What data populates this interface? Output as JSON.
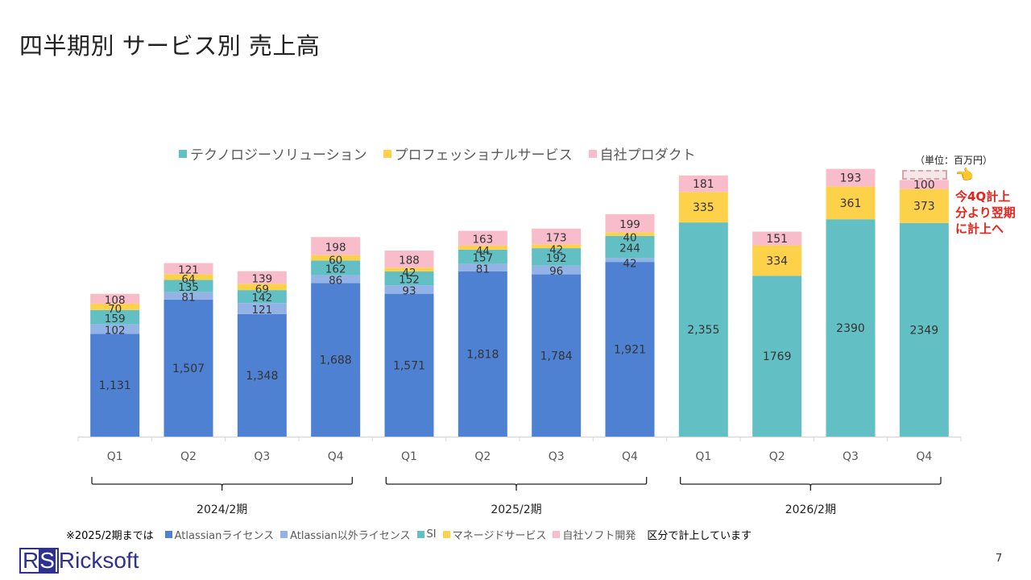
{
  "page": {
    "title": "四半期別 サービス別 売上高",
    "unit_label": "（単位：百万円）",
    "annotation_lines": [
      "今4Q計上",
      "分より翌期",
      "に計上へ"
    ],
    "footnote_prefix": "※2025/2期までは",
    "footnote_suffix": "区分で計上しています",
    "logo_rs": [
      "R",
      "S"
    ],
    "logo_text": "Ricksoft",
    "page_number": "7",
    "hand_icon": "pointing-hand"
  },
  "colors": {
    "atlassian_license": "#4f81d3",
    "other_license": "#93b3e6",
    "si_tech": "#62bfc4",
    "managed_pro": "#fdd24a",
    "own_product": "#f8bccb",
    "annotation_red": "#e8211b",
    "logo_blue": "#2e3192"
  },
  "legend_top": [
    {
      "label": "テクノロジーソリューション",
      "color": "#62bfc4"
    },
    {
      "label": "プロフェッショナルサービス",
      "color": "#fdd24a"
    },
    {
      "label": "自社プロダクト",
      "color": "#f8bccb"
    }
  ],
  "legend_bottom": [
    {
      "label": "Atlassianライセンス",
      "color": "#4f81d3"
    },
    {
      "label": "Atlassian以外ライセンス",
      "color": "#93b3e6"
    },
    {
      "label": "SI",
      "color": "#62bfc4"
    },
    {
      "label": "マネージドサービス",
      "color": "#fdd24a"
    },
    {
      "label": "自社ソフト開発",
      "color": "#f8bccb"
    }
  ],
  "chart_data": {
    "type": "bar",
    "stacked": true,
    "title": "四半期別 サービス別 売上高",
    "xlabel": "",
    "ylabel": "",
    "unit": "百万円",
    "ylim": [
      0,
      3000
    ],
    "grid": false,
    "legend_position": "top",
    "categories": [
      "Q1",
      "Q2",
      "Q3",
      "Q4",
      "Q1",
      "Q2",
      "Q3",
      "Q4",
      "Q1",
      "Q2",
      "Q3",
      "Q4"
    ],
    "groups": [
      {
        "label": "2024/2期",
        "from": 0,
        "to": 3
      },
      {
        "label": "2025/2期",
        "from": 4,
        "to": 7
      },
      {
        "label": "2026/2期",
        "from": 8,
        "to": 11
      }
    ],
    "bars": [
      {
        "segments": [
          {
            "key": "atlassian_license",
            "value": 1131,
            "label": "1,131"
          },
          {
            "key": "other_license",
            "value": 102,
            "label": "102"
          },
          {
            "key": "si_tech",
            "value": 159,
            "label": "159"
          },
          {
            "key": "managed_pro",
            "value": 70,
            "label": "70"
          },
          {
            "key": "own_product",
            "value": 108,
            "label": "108"
          }
        ]
      },
      {
        "segments": [
          {
            "key": "atlassian_license",
            "value": 1507,
            "label": "1,507"
          },
          {
            "key": "other_license",
            "value": 81,
            "label": "81"
          },
          {
            "key": "si_tech",
            "value": 135,
            "label": "135"
          },
          {
            "key": "managed_pro",
            "value": 64,
            "label": "64"
          },
          {
            "key": "own_product",
            "value": 121,
            "label": "121"
          }
        ]
      },
      {
        "segments": [
          {
            "key": "atlassian_license",
            "value": 1348,
            "label": "1,348"
          },
          {
            "key": "other_license",
            "value": 121,
            "label": "121"
          },
          {
            "key": "si_tech",
            "value": 142,
            "label": "142"
          },
          {
            "key": "managed_pro",
            "value": 69,
            "label": "69"
          },
          {
            "key": "own_product",
            "value": 139,
            "label": "139"
          }
        ]
      },
      {
        "segments": [
          {
            "key": "atlassian_license",
            "value": 1688,
            "label": "1,688"
          },
          {
            "key": "other_license",
            "value": 86,
            "label": "86"
          },
          {
            "key": "si_tech",
            "value": 162,
            "label": "162"
          },
          {
            "key": "managed_pro",
            "value": 60,
            "label": "60"
          },
          {
            "key": "own_product",
            "value": 198,
            "label": "198"
          }
        ]
      },
      {
        "segments": [
          {
            "key": "atlassian_license",
            "value": 1571,
            "label": "1,571"
          },
          {
            "key": "other_license",
            "value": 93,
            "label": "93"
          },
          {
            "key": "si_tech",
            "value": 152,
            "label": "152"
          },
          {
            "key": "managed_pro",
            "value": 42,
            "label": "42"
          },
          {
            "key": "own_product",
            "value": 188,
            "label": "188"
          }
        ]
      },
      {
        "segments": [
          {
            "key": "atlassian_license",
            "value": 1818,
            "label": "1,818"
          },
          {
            "key": "other_license",
            "value": 81,
            "label": "81"
          },
          {
            "key": "si_tech",
            "value": 157,
            "label": "157"
          },
          {
            "key": "managed_pro",
            "value": 44,
            "label": "44"
          },
          {
            "key": "own_product",
            "value": 163,
            "label": "163"
          }
        ]
      },
      {
        "segments": [
          {
            "key": "atlassian_license",
            "value": 1784,
            "label": "1,784"
          },
          {
            "key": "other_license",
            "value": 96,
            "label": "96"
          },
          {
            "key": "si_tech",
            "value": 192,
            "label": "192"
          },
          {
            "key": "managed_pro",
            "value": 42,
            "label": "42"
          },
          {
            "key": "own_product",
            "value": 173,
            "label": "173"
          }
        ]
      },
      {
        "segments": [
          {
            "key": "atlassian_license",
            "value": 1921,
            "label": "1,921"
          },
          {
            "key": "other_license",
            "value": 42,
            "label": "42"
          },
          {
            "key": "si_tech",
            "value": 244,
            "label": "244"
          },
          {
            "key": "managed_pro",
            "value": 40,
            "label": "40"
          },
          {
            "key": "own_product",
            "value": 199,
            "label": "199"
          }
        ]
      },
      {
        "segments": [
          {
            "key": "si_tech",
            "value": 2355,
            "label": "2,355"
          },
          {
            "key": "managed_pro",
            "value": 335,
            "label": "335"
          },
          {
            "key": "own_product",
            "value": 181,
            "label": "181"
          }
        ]
      },
      {
        "segments": [
          {
            "key": "si_tech",
            "value": 1769,
            "label": "1769"
          },
          {
            "key": "managed_pro",
            "value": 334,
            "label": "334"
          },
          {
            "key": "own_product",
            "value": 151,
            "label": "151"
          }
        ]
      },
      {
        "segments": [
          {
            "key": "si_tech",
            "value": 2390,
            "label": "2390"
          },
          {
            "key": "managed_pro",
            "value": 361,
            "label": "361"
          },
          {
            "key": "own_product",
            "value": 193,
            "label": "193"
          }
        ]
      },
      {
        "segments": [
          {
            "key": "si_tech",
            "value": 2349,
            "label": "2349"
          },
          {
            "key": "managed_pro",
            "value": 373,
            "label": "373"
          },
          {
            "key": "own_product",
            "value": 100,
            "label": "100"
          }
        ]
      }
    ]
  }
}
